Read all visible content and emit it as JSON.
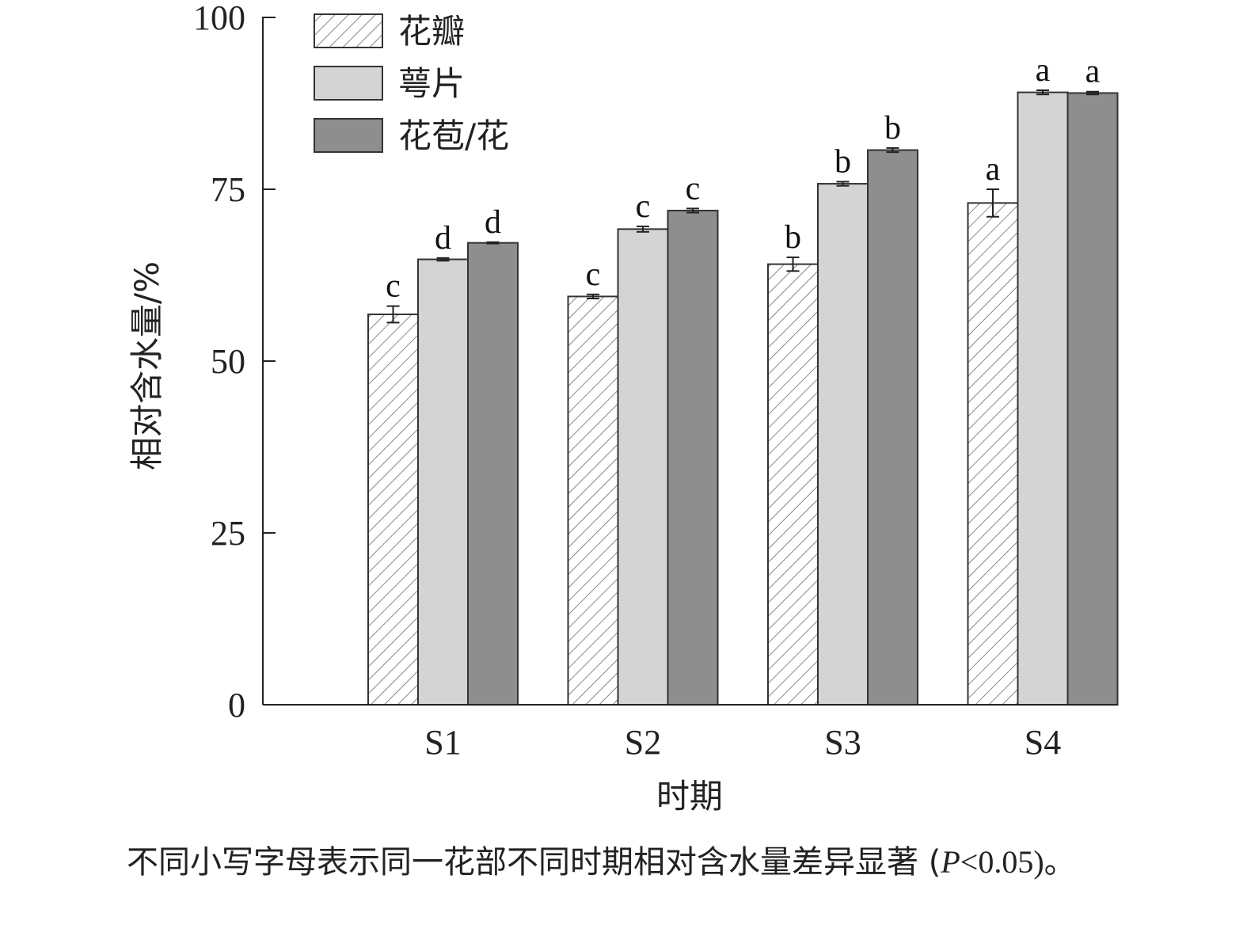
{
  "chart_data": {
    "type": "bar",
    "categories": [
      "S1",
      "S2",
      "S3",
      "S4"
    ],
    "xlabel": "时期",
    "ylabel": "相对含水量/%",
    "ylim": [
      0,
      100
    ],
    "yticks": [
      0,
      25,
      50,
      75,
      100
    ],
    "series": [
      {
        "name": "花瓣",
        "pattern": "hatch",
        "color": "#ffffff",
        "values": [
          56.8,
          59.4,
          64.1,
          73.0
        ],
        "errors": [
          1.2,
          0.3,
          1.0,
          2.0
        ],
        "letters": [
          "c",
          "c",
          "b",
          "a"
        ]
      },
      {
        "name": "萼片",
        "pattern": "solid",
        "color": "#d4d4d4",
        "values": [
          64.8,
          69.2,
          75.8,
          89.1
        ],
        "errors": [
          0.2,
          0.4,
          0.3,
          0.3
        ],
        "letters": [
          "d",
          "c",
          "b",
          "a"
        ]
      },
      {
        "name": "花苞/花",
        "pattern": "solid",
        "color": "#8e8e8e",
        "values": [
          67.2,
          71.9,
          80.7,
          89.0
        ],
        "errors": [
          0.1,
          0.3,
          0.3,
          0.2
        ],
        "letters": [
          "d",
          "c",
          "b",
          "a"
        ]
      }
    ],
    "legend": "top-left",
    "grid": false
  },
  "caption": {
    "text_before": "不同小写字母表示同一花部不同时期相对含水量差异显著 (",
    "p_var": "P",
    "p_rest": "<0.05)。"
  }
}
